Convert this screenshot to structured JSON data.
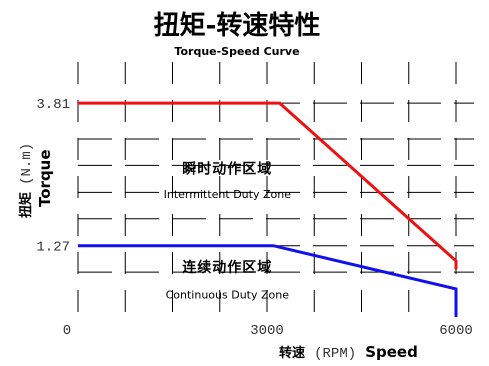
{
  "chart_data": {
    "type": "line",
    "title": "扭矩-转速特性",
    "subtitle": "Torque-Speed Curve",
    "xlabel_cn": "转速",
    "xlabel_unit": "(RPM)",
    "xlabel_en": "Speed",
    "ylabel_cn": "扭矩",
    "ylabel_unit": "(N.m)",
    "ylabel_en": "Torque",
    "xlim": [
      0,
      6000
    ],
    "ylim": [
      0,
      4.4
    ],
    "x_ticks": [
      "0",
      "3000",
      "6000"
    ],
    "y_ticks": [
      {
        "value": 1.27,
        "label": "1.27"
      },
      {
        "value": 3.81,
        "label": "3.81"
      }
    ],
    "grid": true,
    "series": [
      {
        "color": "#ee1111",
        "x": [
          0,
          3200,
          6000,
          6000
        ],
        "y": [
          3.81,
          3.81,
          1.0,
          0.85
        ]
      },
      {
        "color": "#1111ee",
        "x": [
          0,
          3100,
          6000,
          6000
        ],
        "y": [
          1.27,
          1.27,
          0.5,
          0
        ]
      }
    ],
    "zones": [
      {
        "cn": "瞬时动作区域",
        "en": "Intermittent Duty Zone",
        "x": 1100,
        "y_cn": 2.56,
        "y_en": 2.12
      },
      {
        "cn": "连续动作区域",
        "en": "Continuous Duty Zone",
        "x": 1100,
        "y_cn": 0.8,
        "y_en": 0.33
      }
    ]
  }
}
